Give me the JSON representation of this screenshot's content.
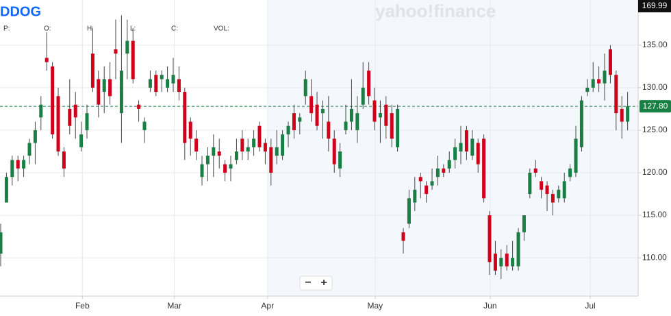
{
  "chart_data": {
    "type": "candlestick",
    "title": "DDOG",
    "watermark": "yahoo!finance",
    "ohlc_labels": [
      "P:",
      "O:",
      "H:",
      "L:",
      "C:",
      "VOL:"
    ],
    "zoom_controls": [
      "−",
      "+"
    ],
    "top_flag": "169.99",
    "current_price": {
      "value": 127.8,
      "label": "127.80"
    },
    "up_color": "#1a7f45",
    "down_color": "#d0021b",
    "grid": true,
    "xlim": [
      -0.12,
      110.83
    ],
    "xticks": [
      {
        "value": 14.2,
        "label": "Feb"
      },
      {
        "value": 30.2,
        "label": "Mar"
      },
      {
        "value": 46.4,
        "label": "Apr"
      },
      {
        "value": 65.1,
        "label": "May"
      },
      {
        "value": 85.1,
        "label": "Jun"
      },
      {
        "value": 102.5,
        "label": "Jul"
      }
    ],
    "ylim": [
      105.5,
      140.3
    ],
    "yticks": [
      {
        "value": 110,
        "label": "110.00"
      },
      {
        "value": 115,
        "label": "115.00"
      },
      {
        "value": 120,
        "label": "120.00"
      },
      {
        "value": 125,
        "label": "125.00"
      },
      {
        "value": 130,
        "label": "130.00"
      },
      {
        "value": 135,
        "label": "135.00"
      }
    ],
    "open": [
      110.5,
      116.5,
      119.5,
      121.5,
      120.5,
      122,
      123.5,
      126.5,
      133.5,
      132.5,
      129,
      122.5,
      127.5,
      128,
      123,
      125,
      134,
      131,
      129.5,
      131,
      134.5,
      127,
      134,
      135.5,
      128,
      125,
      130,
      131.5,
      131,
      130,
      130.5,
      131,
      129.5,
      126,
      124,
      119.5,
      121,
      122,
      122.5,
      121,
      120.5,
      121.5,
      124,
      122.5,
      123,
      125.5,
      123.5,
      123,
      122,
      122,
      124.5,
      127,
      126,
      129,
      129,
      128,
      127,
      126,
      124,
      120.5,
      125,
      126,
      125,
      128,
      132,
      128.5,
      126.5,
      128,
      127,
      123,
      113,
      114,
      116.5,
      119.5,
      118.5,
      118.5,
      119.5,
      120.5,
      120.5,
      121.5,
      122.5,
      125,
      122,
      123.5,
      124,
      115,
      110.5,
      109,
      110.5,
      109,
      109,
      113,
      117.5,
      120.5,
      119,
      118.5,
      117.5,
      117,
      117,
      119.5,
      120,
      123,
      129.5,
      130,
      131,
      130.5,
      134.5,
      131.5,
      127.5,
      126
    ],
    "high": [
      114,
      120,
      122,
      122,
      122,
      124,
      126,
      129,
      136.5,
      133,
      130,
      123,
      131,
      129.5,
      126,
      128,
      137,
      132,
      132.5,
      133,
      138,
      138.5,
      138,
      137,
      128.5,
      126.5,
      132,
      132,
      132,
      132.5,
      133.5,
      132.5,
      130,
      126.5,
      125,
      122,
      123,
      124.5,
      124,
      121.5,
      122,
      124,
      125,
      124,
      125,
      126,
      124,
      124,
      125,
      125,
      126,
      128,
      127,
      132,
      131,
      129.5,
      128.5,
      129,
      125,
      123.5,
      128,
      131,
      129,
      133,
      133,
      130,
      128.5,
      129,
      128,
      128,
      113.5,
      118,
      119.5,
      120,
      119,
      120.5,
      122,
      121,
      122.5,
      124,
      125.5,
      125.5,
      125,
      124,
      124.5,
      115.5,
      112,
      111,
      111.5,
      112,
      113.5,
      115,
      120.5,
      121.5,
      119.5,
      119,
      118,
      118.5,
      120,
      121,
      125.5,
      129,
      131,
      133,
      132.5,
      134,
      135,
      132,
      129,
      129.5
    ],
    "low": [
      109,
      116.5,
      118.5,
      119,
      119.5,
      121,
      121,
      125,
      132,
      124,
      122,
      119.5,
      124.5,
      124,
      122.5,
      124,
      129.5,
      126.5,
      127,
      128,
      131,
      123.5,
      131,
      130.5,
      126,
      123.5,
      129.5,
      129,
      129.5,
      129.5,
      129.5,
      128.5,
      121.5,
      122,
      121.5,
      118.5,
      119,
      119.5,
      120.5,
      119,
      119,
      121,
      121.5,
      121.5,
      122,
      122.5,
      121,
      118.5,
      121,
      121.5,
      123,
      124,
      124.5,
      128,
      126,
      125,
      124,
      122.5,
      120,
      119.5,
      124.5,
      125,
      123.5,
      127.5,
      128,
      125,
      123.5,
      124,
      123,
      122.5,
      110.5,
      113.5,
      115.5,
      117,
      116.5,
      118,
      118.5,
      119.5,
      120,
      120.5,
      121,
      121.5,
      121.5,
      120,
      116.5,
      108,
      108,
      107.5,
      108.5,
      108.5,
      108.5,
      112,
      117,
      119.5,
      117,
      115.5,
      115,
      116.5,
      116.5,
      119,
      119.5,
      122.5,
      129,
      129.5,
      129.5,
      128.5,
      130.5,
      125,
      124,
      125
    ],
    "close": [
      113,
      119.5,
      121.5,
      120.5,
      121.5,
      123.5,
      125,
      128,
      133,
      124.5,
      122.5,
      120.5,
      125.5,
      126.5,
      124.5,
      127,
      130,
      128,
      131,
      129,
      134,
      132,
      135.5,
      131,
      127.5,
      126,
      131,
      129.5,
      131.5,
      131,
      131.5,
      129.5,
      123.5,
      124,
      122.5,
      121,
      122,
      123,
      122,
      120,
      121,
      122.5,
      122.5,
      123,
      124,
      123,
      122.5,
      120,
      123,
      124.5,
      125.5,
      125,
      126.5,
      131,
      127,
      125.5,
      127.5,
      124,
      121,
      122.5,
      126,
      127.5,
      127,
      130,
      129,
      126,
      127,
      125.5,
      124,
      127.5,
      112,
      117,
      118,
      119,
      117.5,
      119,
      120.5,
      120,
      121.5,
      123,
      123.5,
      122.5,
      124,
      121,
      117,
      109.5,
      108.5,
      110,
      109,
      110,
      113,
      115,
      120,
      120,
      118,
      117.5,
      116.5,
      118,
      119,
      120.5,
      124,
      128.5,
      130,
      131,
      130.5,
      132,
      131.5,
      127,
      126,
      127.8
    ]
  }
}
